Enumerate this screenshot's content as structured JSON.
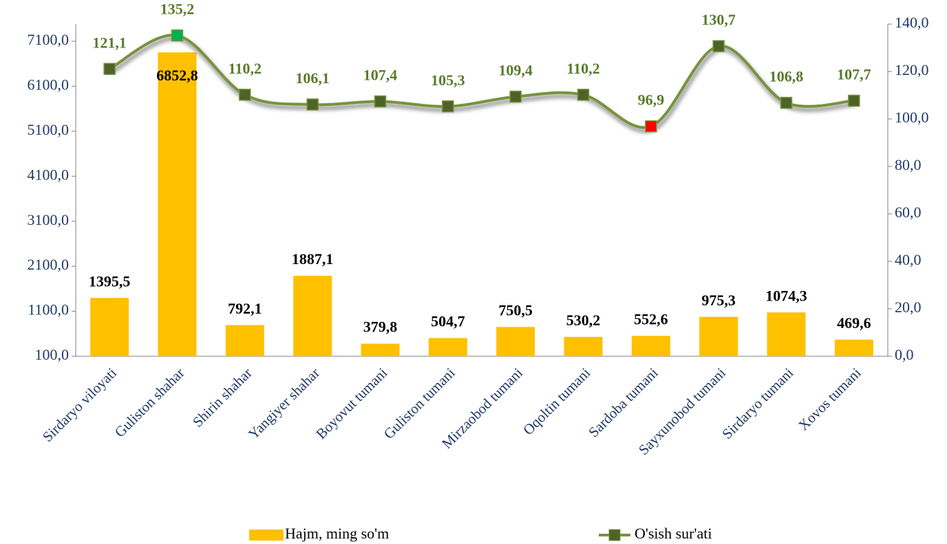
{
  "chart_data": {
    "type": "bar_line",
    "categories": [
      "Sirdaryo viloyati",
      "Guliston shahar",
      "Shirin shahar",
      "Yangiyer shahar",
      "Boyovut tumani",
      "Guliston tumani",
      "Mirzaobod tumani",
      "Oqoltin tumani",
      "Sardoba tumani",
      "Sayxunobod tumani",
      "Sirdaryo tumani",
      "Xovos tumani"
    ],
    "series": [
      {
        "name": "Hajm, ming so'm",
        "type": "bar",
        "color": "#ffc000",
        "values": [
          1395.5,
          6852.8,
          792.1,
          1887.1,
          379.8,
          504.7,
          750.5,
          530.2,
          552.6,
          975.3,
          1074.3,
          469.6
        ],
        "value_labels": [
          "1395,5",
          "6852,8",
          "792,1",
          "1887,1",
          "379,8",
          "504,7",
          "750,5",
          "530,2",
          "552,6",
          "975,3",
          "1074,3",
          "469,6"
        ]
      },
      {
        "name": "O'sish sur'ati",
        "type": "line",
        "axis": "y2",
        "color": "#77933c",
        "marker_color": "#4f6228",
        "marker_colors": [
          "#4f6228",
          "#00b050",
          "#4f6228",
          "#4f6228",
          "#4f6228",
          "#4f6228",
          "#4f6228",
          "#4f6228",
          "#ff0000",
          "#4f6228",
          "#4f6228",
          "#4f6228"
        ],
        "values": [
          121.1,
          135.2,
          110.2,
          106.1,
          107.4,
          105.3,
          109.4,
          110.2,
          96.9,
          130.7,
          106.8,
          107.7
        ],
        "value_labels": [
          "121,1",
          "135,2",
          "110,2",
          "106,1",
          "107,4",
          "105,3",
          "109,4",
          "110,2",
          "96,9",
          "130,7",
          "106,8",
          "107,7"
        ]
      }
    ],
    "ylim": [
      100,
      7482
    ],
    "yticks": [
      {
        "value": 100,
        "label": "100,0"
      },
      {
        "value": 1100,
        "label": "1100,0"
      },
      {
        "value": 2100,
        "label": "2100,0"
      },
      {
        "value": 3100,
        "label": "3100,0"
      },
      {
        "value": 4100,
        "label": "4100,0"
      },
      {
        "value": 5100,
        "label": "5100,0"
      },
      {
        "value": 6100,
        "label": "6100,0"
      },
      {
        "value": 7100,
        "label": "7100,0"
      }
    ],
    "y2lim": [
      0,
      140
    ],
    "y2ticks": [
      {
        "value": 0,
        "label": "0,0"
      },
      {
        "value": 20,
        "label": "20,0"
      },
      {
        "value": 40,
        "label": "40,0"
      },
      {
        "value": 60,
        "label": "60,0"
      },
      {
        "value": 80,
        "label": "80,0"
      },
      {
        "value": 100,
        "label": "100,0"
      },
      {
        "value": 120,
        "label": "120,0"
      },
      {
        "value": 140,
        "label": "140,0"
      }
    ],
    "legend": "bottom"
  }
}
